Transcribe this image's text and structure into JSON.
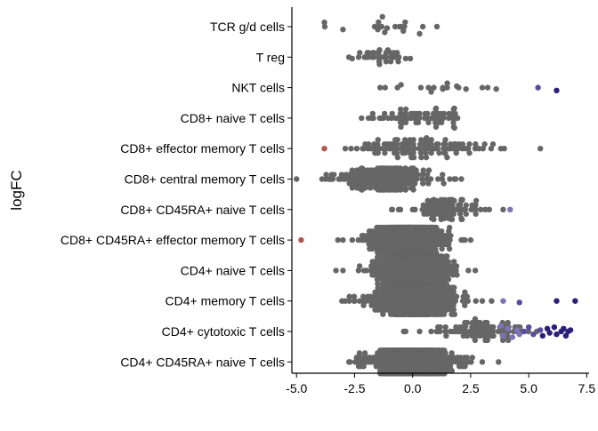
{
  "chart_data": {
    "type": "scatter",
    "subtype": "beeswarm",
    "title": "",
    "xlabel": "",
    "ylabel": "logFC",
    "xlim": [
      -5.2,
      7.6
    ],
    "xticks": [
      -5.0,
      -2.5,
      0.0,
      2.5,
      5.0,
      7.5
    ],
    "xtick_labels": [
      "-5.0",
      "-2.5",
      "0.0",
      "2.5",
      "5.0",
      "7.5"
    ],
    "grid": false,
    "legend": "none",
    "colors": {
      "default": "#666666",
      "down": "#b4584f",
      "up_light": "#7e72b8",
      "up_mid": "#594aa0",
      "up_dark": "#2c1f78"
    },
    "categories": [
      "TCR g/d cells",
      "T reg",
      "NKT cells",
      "CD8+ naive T cells ",
      "CD8+ effector memory T cells",
      "CD8+ central memory T cells",
      "CD8+ CD45RA+ naive T cells",
      "CD8+ CD45RA+ effector memory T cells",
      "CD4+ naive T cells ",
      "CD4+ memory T cells",
      "CD4+ cytotoxic T cells ",
      "CD4+ CD45RA+ naive T cells "
    ],
    "groups": [
      {
        "n": 12,
        "center": -0.9,
        "spread": 1.4,
        "jitter": 5,
        "outliers": [
          [
            -3.8,
            -0.3
          ],
          [
            -3.0,
            0.2
          ],
          [
            -1.5,
            0.2
          ],
          [
            -1.2,
            0.4
          ],
          [
            -1.1,
            0.1
          ],
          [
            -0.4,
            0.3
          ],
          [
            0.3,
            0.5
          ],
          [
            -1.3,
            -0.7
          ]
        ]
      },
      {
        "n": 35,
        "center": -1.3,
        "spread": 0.55,
        "jitter": 8,
        "outliers": [
          [
            -2.6,
            0.1
          ],
          [
            -0.3,
            0.1
          ],
          [
            -0.1,
            0.1
          ]
        ]
      },
      {
        "n": 10,
        "center": 0.8,
        "spread": 1.2,
        "jitter": 7,
        "outliers": [
          [
            -1.4,
            0.0
          ],
          [
            -0.5,
            -0.2
          ],
          [
            0.8,
            0.3
          ],
          [
            1.3,
            0.1
          ],
          [
            1.9,
            -0.1
          ],
          [
            2.3,
            0.1
          ],
          [
            3.0,
            0.0
          ],
          [
            3.6,
            0.1
          ],
          [
            5.4,
            0.0,
            "up_mid"
          ],
          [
            6.2,
            0.2,
            "up_dark"
          ]
        ]
      },
      {
        "n": 70,
        "center": 0.3,
        "spread": 1.0,
        "jitter": 11,
        "outliers": [
          [
            -2.2,
            0.0
          ],
          [
            -1.9,
            0.0
          ]
        ]
      },
      {
        "n": 110,
        "center": 0.2,
        "spread": 1.5,
        "jitter": 12,
        "outliers": [
          [
            -3.8,
            0.0,
            "down"
          ],
          [
            -2.9,
            0.0
          ],
          [
            3.8,
            0.0
          ],
          [
            5.5,
            0.0
          ]
        ]
      },
      {
        "n": 210,
        "center": -1.2,
        "spread": 1.1,
        "jitter": 12,
        "outliers": [
          [
            -3.9,
            0.0
          ],
          [
            -3.6,
            0.0
          ],
          [
            1.6,
            0.0
          ],
          [
            2.1,
            0.0
          ]
        ]
      },
      {
        "n": 95,
        "center": 1.5,
        "spread": 0.7,
        "jitter": 11,
        "outliers": [
          [
            -0.9,
            0.0
          ],
          [
            -0.6,
            0.0
          ],
          [
            3.3,
            0.0
          ],
          [
            3.9,
            0.0
          ],
          [
            4.2,
            0.0,
            "up_light"
          ]
        ]
      },
      {
        "n": 620,
        "center": -0.2,
        "spread": 0.75,
        "jitter": 14,
        "outliers": [
          [
            -4.8,
            0.0,
            "down"
          ],
          [
            -3.0,
            0.0
          ],
          [
            -2.6,
            0.0
          ],
          [
            2.1,
            0.0
          ],
          [
            2.5,
            0.0
          ]
        ]
      },
      {
        "n": 600,
        "center": 0.0,
        "spread": 0.8,
        "jitter": 16,
        "outliers": [
          [
            -3.3,
            0.0
          ],
          [
            -3.0,
            0.0
          ],
          [
            2.4,
            0.0
          ],
          [
            2.7,
            0.0
          ]
        ]
      },
      {
        "n": 380,
        "center": 0.1,
        "spread": 1.0,
        "jitter": 15,
        "outliers": [
          [
            -2.5,
            0.0
          ],
          [
            3.0,
            0.0
          ],
          [
            3.4,
            0.0
          ],
          [
            3.9,
            0.0,
            "up_light"
          ],
          [
            4.6,
            0.1,
            "up_mid"
          ],
          [
            6.2,
            0.0,
            "up_dark"
          ],
          [
            7.0,
            0.0,
            "up_dark"
          ]
        ]
      },
      {
        "n": 90,
        "center": 3.0,
        "spread": 0.9,
        "jitter": 14,
        "outliers": [
          [
            -0.3,
            0.0
          ],
          [
            0.3,
            0.0
          ],
          [
            0.8,
            0.0
          ],
          [
            1.4,
            0.0
          ],
          [
            3.8,
            -0.4,
            "up_light"
          ],
          [
            3.9,
            0.3,
            "up_light"
          ],
          [
            4.1,
            -0.2,
            "up_light"
          ],
          [
            4.3,
            0.4,
            "up_light"
          ],
          [
            4.5,
            -0.1,
            "up_light"
          ],
          [
            4.6,
            0.2,
            "up_light"
          ],
          [
            4.8,
            0.0,
            "up_mid"
          ],
          [
            5.0,
            -0.3,
            "up_mid"
          ],
          [
            5.2,
            0.2,
            "up_mid"
          ],
          [
            5.5,
            -0.1,
            "up_mid"
          ],
          [
            5.6,
            0.3,
            "up_dark"
          ],
          [
            5.8,
            -0.2,
            "up_dark"
          ],
          [
            5.9,
            0.1,
            "up_dark"
          ],
          [
            6.1,
            -0.3,
            "up_dark"
          ],
          [
            6.2,
            0.2,
            "up_dark"
          ],
          [
            6.4,
            0.0,
            "up_dark"
          ],
          [
            6.5,
            -0.2,
            "up_dark"
          ],
          [
            6.6,
            0.3,
            "up_dark"
          ],
          [
            6.7,
            0.0,
            "up_dark"
          ],
          [
            6.8,
            -0.1,
            "up_dark"
          ]
        ]
      },
      {
        "n": 560,
        "center": -0.1,
        "spread": 0.9,
        "jitter": 13,
        "outliers": [
          [
            -2.7,
            0.0
          ],
          [
            -2.3,
            0.0
          ],
          [
            2.4,
            0.0
          ],
          [
            3.0,
            0.0
          ],
          [
            3.7,
            0.0
          ]
        ]
      }
    ]
  }
}
